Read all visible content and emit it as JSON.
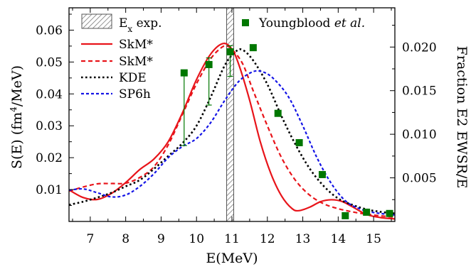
{
  "chart_data": {
    "type": "line",
    "xlabel": "E(MeV)",
    "ylabel_left": "S(E) (fm⁴/MeV)",
    "ylabel_right": "Fraction E2 EWSR/E",
    "xlim": [
      6.4,
      15.6
    ],
    "ylim_left": [
      0,
      0.067
    ],
    "ylim_right": [
      0,
      0.0245
    ],
    "x_ticks": [
      "7",
      "8",
      "9",
      "10",
      "11",
      "12",
      "13",
      "14",
      "15"
    ],
    "y_ticks_left": [
      "0.01",
      "0.02",
      "0.03",
      "0.04",
      "0.05",
      "0.06"
    ],
    "y_ticks_right": [
      "0.005",
      "0.010",
      "0.015",
      "0.020"
    ],
    "ex_band": {
      "label": "Eₓ exp.",
      "x_range": [
        10.85,
        11.05
      ]
    },
    "experiment": {
      "label": "Youngblood et al.",
      "color": "#007700",
      "points": [
        {
          "x": 9.65,
          "y": 0.0466,
          "err": [
            0.0238,
            0.0466
          ]
        },
        {
          "x": 10.35,
          "y": 0.0492,
          "err": [
            0.0365,
            0.0513
          ]
        },
        {
          "x": 10.95,
          "y": 0.0532,
          "err": [
            0.0455,
            0.0551
          ]
        },
        {
          "x": 11.6,
          "y": 0.0545
        },
        {
          "x": 12.3,
          "y": 0.0339
        },
        {
          "x": 12.9,
          "y": 0.0247
        },
        {
          "x": 13.55,
          "y": 0.0147
        },
        {
          "x": 14.2,
          "y": 0.0018
        },
        {
          "x": 14.8,
          "y": 0.0029
        },
        {
          "x": 15.45,
          "y": 0.0025
        }
      ]
    },
    "series": [
      {
        "name": "SkM*",
        "color": "#e8141a",
        "dash": "solid",
        "points": [
          [
            6.4,
            0.0099
          ],
          [
            6.8,
            0.0075
          ],
          [
            7.2,
            0.0069
          ],
          [
            7.6,
            0.0088
          ],
          [
            8.0,
            0.0122
          ],
          [
            8.4,
            0.0163
          ],
          [
            8.8,
            0.0196
          ],
          [
            9.2,
            0.025
          ],
          [
            9.6,
            0.034
          ],
          [
            10.0,
            0.0445
          ],
          [
            10.4,
            0.0525
          ],
          [
            10.75,
            0.0558
          ],
          [
            11.0,
            0.054
          ],
          [
            11.2,
            0.049
          ],
          [
            11.5,
            0.038
          ],
          [
            11.8,
            0.025
          ],
          [
            12.1,
            0.015
          ],
          [
            12.4,
            0.008
          ],
          [
            12.7,
            0.004
          ],
          [
            12.9,
            0.0034
          ],
          [
            13.2,
            0.0045
          ],
          [
            13.5,
            0.0062
          ],
          [
            13.8,
            0.0068
          ],
          [
            14.1,
            0.0063
          ],
          [
            14.4,
            0.0046
          ],
          [
            14.8,
            0.0022
          ],
          [
            15.2,
            0.0012
          ],
          [
            15.6,
            0.0008
          ]
        ]
      },
      {
        "name": "SkM*",
        "color": "#e8141a",
        "dash": "dashed",
        "points": [
          [
            6.4,
            0.0095
          ],
          [
            6.8,
            0.0108
          ],
          [
            7.2,
            0.0118
          ],
          [
            7.6,
            0.0119
          ],
          [
            8.0,
            0.012
          ],
          [
            8.4,
            0.0138
          ],
          [
            8.8,
            0.0172
          ],
          [
            9.2,
            0.024
          ],
          [
            9.6,
            0.0335
          ],
          [
            10.0,
            0.0432
          ],
          [
            10.4,
            0.051
          ],
          [
            10.7,
            0.0545
          ],
          [
            10.85,
            0.055
          ],
          [
            11.0,
            0.054
          ],
          [
            11.3,
            0.0495
          ],
          [
            11.6,
            0.041
          ],
          [
            12.0,
            0.03
          ],
          [
            12.4,
            0.02
          ],
          [
            12.8,
            0.0128
          ],
          [
            13.2,
            0.0082
          ],
          [
            13.6,
            0.0055
          ],
          [
            14.0,
            0.004
          ],
          [
            14.5,
            0.0028
          ],
          [
            15.0,
            0.002
          ],
          [
            15.6,
            0.0013
          ]
        ]
      },
      {
        "name": "KDE",
        "color": "#000000",
        "dash": "dotted",
        "points": [
          [
            6.4,
            0.0052
          ],
          [
            6.8,
            0.0062
          ],
          [
            7.2,
            0.0075
          ],
          [
            7.6,
            0.009
          ],
          [
            8.0,
            0.011
          ],
          [
            8.4,
            0.013
          ],
          [
            8.8,
            0.0165
          ],
          [
            9.2,
            0.0205
          ],
          [
            9.6,
            0.0245
          ],
          [
            10.0,
            0.03
          ],
          [
            10.4,
            0.039
          ],
          [
            10.8,
            0.049
          ],
          [
            11.1,
            0.0532
          ],
          [
            11.3,
            0.0538
          ],
          [
            11.6,
            0.0505
          ],
          [
            12.0,
            0.043
          ],
          [
            12.4,
            0.033
          ],
          [
            12.8,
            0.024
          ],
          [
            13.2,
            0.0165
          ],
          [
            13.6,
            0.011
          ],
          [
            14.0,
            0.0072
          ],
          [
            14.4,
            0.0052
          ],
          [
            14.8,
            0.0038
          ],
          [
            15.2,
            0.003
          ],
          [
            15.6,
            0.0025
          ]
        ]
      },
      {
        "name": "SP6h",
        "color": "#1414e6",
        "dash": "dashed",
        "points": [
          [
            6.4,
            0.0098
          ],
          [
            6.8,
            0.0102
          ],
          [
            7.2,
            0.009
          ],
          [
            7.6,
            0.0077
          ],
          [
            8.0,
            0.0083
          ],
          [
            8.4,
            0.011
          ],
          [
            8.8,
            0.015
          ],
          [
            9.2,
            0.02
          ],
          [
            9.6,
            0.0235
          ],
          [
            10.0,
            0.026
          ],
          [
            10.4,
            0.031
          ],
          [
            10.8,
            0.038
          ],
          [
            11.2,
            0.044
          ],
          [
            11.6,
            0.047
          ],
          [
            11.9,
            0.0468
          ],
          [
            12.2,
            0.0445
          ],
          [
            12.6,
            0.039
          ],
          [
            13.0,
            0.03
          ],
          [
            13.4,
            0.02
          ],
          [
            13.8,
            0.012
          ],
          [
            14.2,
            0.0065
          ],
          [
            14.6,
            0.004
          ],
          [
            15.0,
            0.0028
          ],
          [
            15.6,
            0.002
          ]
        ]
      }
    ]
  }
}
